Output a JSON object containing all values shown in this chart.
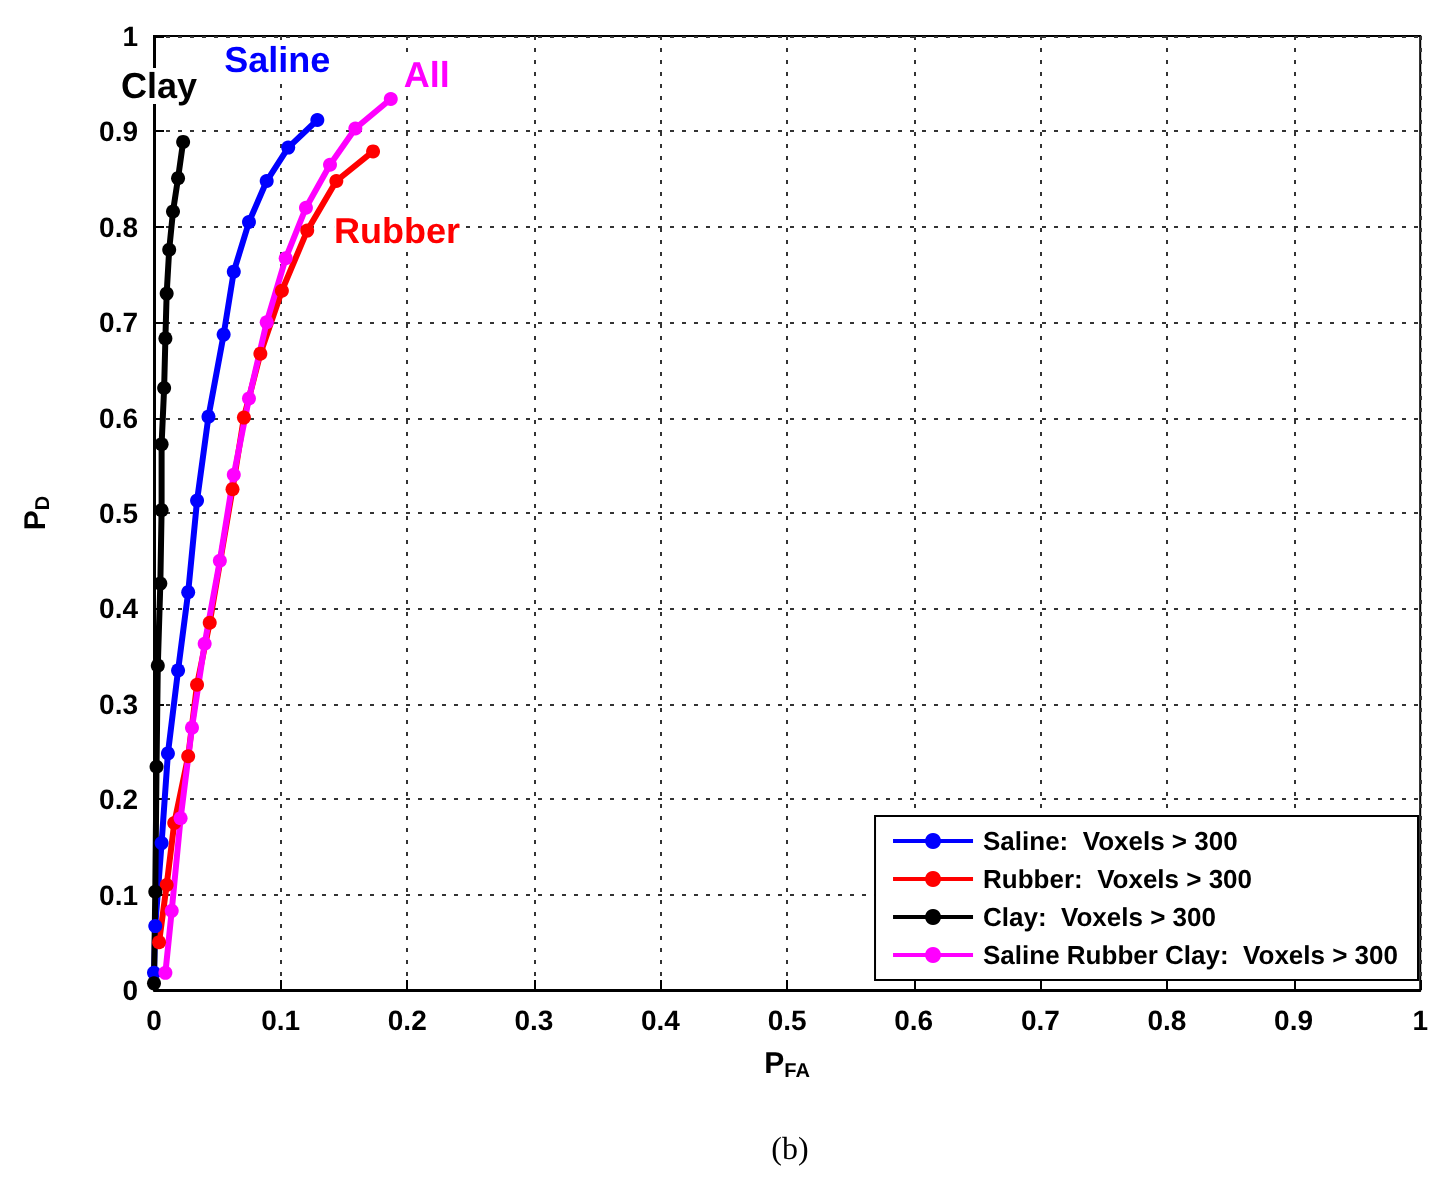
{
  "chart_data": {
    "type": "line",
    "xlabel": "P$_{FA}$",
    "ylabel": "P$_{D}$",
    "xlim": [
      0,
      1
    ],
    "ylim": [
      0,
      1
    ],
    "xticks": [
      0,
      0.1,
      0.2,
      0.3,
      0.4,
      0.5,
      0.6,
      0.7,
      0.8,
      0.9,
      1
    ],
    "yticks": [
      0,
      0.1,
      0.2,
      0.3,
      0.4,
      0.5,
      0.6,
      0.7,
      0.8,
      0.9,
      1
    ],
    "grid": true,
    "legend": "bottom right",
    "marker": "circle",
    "line_style": "solid",
    "series": [
      {
        "name": "Saline:  Voxels > 300",
        "color": "#0000ff",
        "x": [
          0.0,
          0.001,
          0.006,
          0.011,
          0.019,
          0.027,
          0.034,
          0.043,
          0.055,
          0.063,
          0.075,
          0.089,
          0.106,
          0.129
        ],
        "values": [
          0.018,
          0.067,
          0.154,
          0.248,
          0.335,
          0.417,
          0.513,
          0.601,
          0.687,
          0.753,
          0.805,
          0.848,
          0.883,
          0.912
        ]
      },
      {
        "name": "Rubber:  Voxels > 300",
        "color": "#ff0000",
        "x": [
          0.004,
          0.01,
          0.016,
          0.027,
          0.034,
          0.044,
          0.052,
          0.062,
          0.071,
          0.084,
          0.101,
          0.121,
          0.144,
          0.173
        ],
        "values": [
          0.05,
          0.11,
          0.175,
          0.245,
          0.32,
          0.385,
          null,
          0.525,
          0.6,
          0.667,
          0.733,
          0.796,
          0.848,
          0.879
        ]
      },
      {
        "name": "Clay:  Voxels > 300",
        "color": "#000000",
        "x": [
          0.0,
          0.001,
          0.002,
          0.003,
          0.005,
          0.006,
          0.006,
          0.008,
          0.009,
          0.01,
          0.012,
          0.015,
          0.019,
          0.023
        ],
        "values": [
          0.007,
          0.103,
          0.234,
          0.34,
          0.426,
          0.503,
          0.572,
          0.631,
          0.683,
          0.73,
          0.776,
          0.816,
          0.851,
          0.889
        ]
      },
      {
        "name": "Saline Rubber Clay:  Voxels > 300",
        "color": "#ff00ff",
        "x": [
          0.009,
          0.014,
          0.021,
          0.03,
          0.04,
          0.052,
          0.063,
          0.075,
          0.089,
          0.104,
          0.12,
          0.139,
          0.159,
          0.187
        ],
        "values": [
          0.018,
          0.083,
          0.18,
          0.275,
          0.363,
          0.45,
          0.54,
          0.62,
          0.7,
          0.767,
          0.82,
          0.865,
          0.903,
          0.934
        ]
      }
    ],
    "annotations": [
      "Saline",
      "Rubber",
      "Clay",
      "All",
      "(b)"
    ]
  }
}
